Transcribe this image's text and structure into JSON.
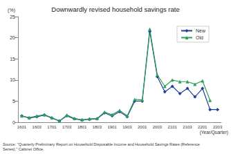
{
  "chart_data": {
    "type": "line",
    "title": "Downwardly revised household savings rate",
    "y_label": "(%)",
    "x_label": "(Year/Quarter)",
    "source": [
      "Source: \"Quarterly Preliminary Report on Household Disposable Income and Household Savings Rates (Reference",
      "Series),\" Cabinet Office."
    ],
    "categories": [
      "1601",
      null,
      "1603",
      null,
      "1701",
      null,
      "1703",
      null,
      "1801",
      null,
      "1803",
      null,
      "1901",
      null,
      "1903",
      null,
      "2001",
      null,
      "2003",
      null,
      "2101",
      null,
      "2103",
      null,
      "2201",
      null,
      "2203"
    ],
    "series": [
      {
        "name": "New",
        "color": "#1f3d99",
        "marker": "diamond",
        "values": [
          1.5,
          1.0,
          1.3,
          1.7,
          1.0,
          0.3,
          1.5,
          0.8,
          0.5,
          0.7,
          0.8,
          2.2,
          1.5,
          2.5,
          1.3,
          5.0,
          5.0,
          21.5,
          10.8,
          7.2,
          8.5,
          6.8,
          8.0,
          6.0,
          8.0,
          3.0,
          3.0
        ]
      },
      {
        "name": "Old",
        "color": "#2ca05a",
        "marker": "triangle",
        "values": [
          1.5,
          1.1,
          1.5,
          1.8,
          1.1,
          0.3,
          1.7,
          0.9,
          0.6,
          0.8,
          0.9,
          2.4,
          1.8,
          2.8,
          1.5,
          5.4,
          5.3,
          22.0,
          11.2,
          8.5,
          10.0,
          9.6,
          9.6,
          9.0,
          9.8,
          5.2,
          null
        ]
      }
    ],
    "ylim": [
      0,
      25
    ],
    "yticks": [
      0,
      5,
      10,
      15,
      20,
      25
    ],
    "grid": false,
    "legend": "upper right"
  }
}
